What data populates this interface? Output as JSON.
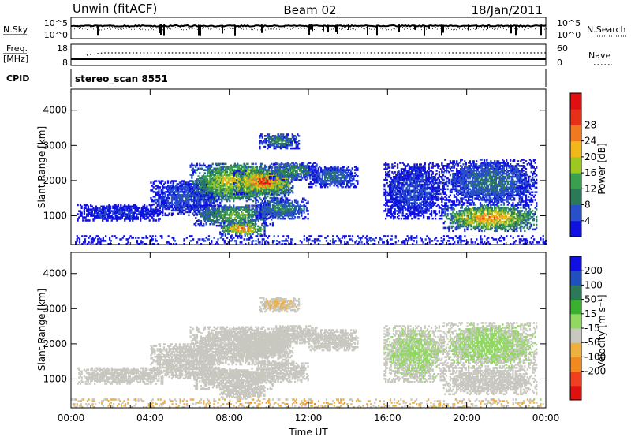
{
  "header": {
    "station": "Unwin (fitACF)",
    "beam": "Beam 02",
    "date": "18/Jan/2011"
  },
  "top_panels": {
    "nsky_label": "N.Sky",
    "nsky_ticks_left": [
      "10^5",
      "10^0"
    ],
    "nsky_ticks_right": [
      "10^5",
      "10^0"
    ],
    "nsearch_label": "N.Search",
    "freq_label": "Freq.",
    "freq_unit": "[MHz]",
    "freq_ticks": [
      "18",
      "8"
    ],
    "nave_label": "Nave",
    "nave_ticks": [
      "60",
      "0"
    ],
    "cpid_label": "CPID",
    "cpid_value": "stereo_scan 8551"
  },
  "colors": {
    "power": [
      "#1010e0",
      "#2850c8",
      "#2a7a5a",
      "#3aa050",
      "#9cc820",
      "#f0b818",
      "#f07820",
      "#e83018",
      "#e01010"
    ],
    "velocity": [
      "#e01010",
      "#f04020",
      "#f08a20",
      "#f0b040",
      "#c8c8c0",
      "#90d860",
      "#3ab030",
      "#2a7a5a",
      "#2050c0",
      "#1010e0"
    ]
  },
  "chart_data": [
    {
      "type": "heatmap",
      "title": "",
      "ylabel": "Slant Range [km]",
      "xlabel": "Time UT",
      "x_ticks": [
        "00:00",
        "04:00",
        "08:00",
        "12:00",
        "16:00",
        "20:00",
        "00:00"
      ],
      "y_ticks": [
        "1000",
        "2000",
        "3000",
        "4000"
      ],
      "ylim": [
        180,
        4600
      ],
      "xlim_hours": [
        0,
        24
      ],
      "colorbar": {
        "label": "Power [dB]",
        "ticks": [
          "4",
          "8",
          "12",
          "16",
          "20",
          "24",
          "28"
        ],
        "range": [
          0,
          30
        ]
      },
      "regions": [
        {
          "t": [
            0.3,
            4.6
          ],
          "r": [
            850,
            1300
          ],
          "core": 4,
          "edge": 2
        },
        {
          "t": [
            4.0,
            7.5
          ],
          "r": [
            1000,
            2000
          ],
          "core": 6,
          "edge": 2
        },
        {
          "t": [
            6.0,
            11.0
          ],
          "r": [
            1400,
            2500
          ],
          "core": 20,
          "edge": 4
        },
        {
          "t": [
            8.2,
            11.2
          ],
          "r": [
            1600,
            2300
          ],
          "core": 26,
          "edge": 6
        },
        {
          "t": [
            10.0,
            12.4
          ],
          "r": [
            2000,
            2500
          ],
          "core": 12,
          "edge": 3
        },
        {
          "t": [
            12.0,
            14.5
          ],
          "r": [
            1800,
            2400
          ],
          "core": 8,
          "edge": 2
        },
        {
          "t": [
            6.2,
            10.2
          ],
          "r": [
            700,
            1300
          ],
          "core": 14,
          "edge": 3
        },
        {
          "t": [
            7.5,
            9.8
          ],
          "r": [
            420,
            800
          ],
          "core": 24,
          "edge": 5
        },
        {
          "t": [
            9.3,
            12.0
          ],
          "r": [
            900,
            1500
          ],
          "core": 10,
          "edge": 3
        },
        {
          "t": [
            9.5,
            11.5
          ],
          "r": [
            2900,
            3300
          ],
          "core": 10,
          "edge": 3
        },
        {
          "t": [
            15.8,
            18.8
          ],
          "r": [
            900,
            2500
          ],
          "core": 5,
          "edge": 2
        },
        {
          "t": [
            18.8,
            23.5
          ],
          "r": [
            550,
            1300
          ],
          "core": 22,
          "edge": 5
        },
        {
          "t": [
            18.8,
            23.5
          ],
          "r": [
            1300,
            2600
          ],
          "core": 8,
          "edge": 2
        },
        {
          "t": [
            0.0,
            24.0
          ],
          "r": [
            180,
            420
          ],
          "core": 4,
          "edge": 2
        }
      ]
    },
    {
      "type": "heatmap",
      "title": "",
      "ylabel": "Slant Range [km]",
      "xlabel": "Time UT",
      "x_ticks": [
        "00:00",
        "04:00",
        "08:00",
        "12:00",
        "16:00",
        "20:00",
        "00:00"
      ],
      "y_ticks": [
        "1000",
        "2000",
        "3000",
        "4000"
      ],
      "ylim": [
        180,
        4600
      ],
      "xlim_hours": [
        0,
        24
      ],
      "colorbar": {
        "label": "Velocity [m s⁻¹]",
        "ticks": [
          "200",
          "100",
          "50",
          "15",
          "-15",
          "-50",
          "-100",
          "-200"
        ],
        "range": [
          -250,
          250
        ]
      },
      "regions": [
        {
          "t": [
            0.3,
            4.6
          ],
          "r": [
            850,
            1300
          ],
          "core": 0,
          "edge": 10
        },
        {
          "t": [
            4.0,
            7.5
          ],
          "r": [
            1000,
            2000
          ],
          "core": 0,
          "edge": 10
        },
        {
          "t": [
            6.0,
            11.0
          ],
          "r": [
            1400,
            2500
          ],
          "core": 0,
          "edge": 8
        },
        {
          "t": [
            8.2,
            11.2
          ],
          "r": [
            1600,
            2300
          ],
          "core": 0,
          "edge": 8
        },
        {
          "t": [
            10.0,
            12.4
          ],
          "r": [
            2000,
            2500
          ],
          "core": 0,
          "edge": 8
        },
        {
          "t": [
            12.0,
            14.5
          ],
          "r": [
            1800,
            2400
          ],
          "core": 0,
          "edge": 8
        },
        {
          "t": [
            6.2,
            10.2
          ],
          "r": [
            700,
            1300
          ],
          "core": 0,
          "edge": 8
        },
        {
          "t": [
            7.5,
            9.8
          ],
          "r": [
            420,
            800
          ],
          "core": 0,
          "edge": 8
        },
        {
          "t": [
            9.3,
            12.0
          ],
          "r": [
            900,
            1500
          ],
          "core": 0,
          "edge": 8
        },
        {
          "t": [
            9.5,
            11.5
          ],
          "r": [
            2900,
            3300
          ],
          "core": -20,
          "edge": 8
        },
        {
          "t": [
            15.8,
            18.8
          ],
          "r": [
            900,
            2500
          ],
          "core": 25,
          "edge": 10
        },
        {
          "t": [
            18.8,
            23.5
          ],
          "r": [
            550,
            1300
          ],
          "core": 0,
          "edge": 10
        },
        {
          "t": [
            18.8,
            23.5
          ],
          "r": [
            1300,
            2600
          ],
          "core": 30,
          "edge": 12
        },
        {
          "t": [
            0.0,
            24.0
          ],
          "r": [
            180,
            420
          ],
          "core": -40,
          "edge": 25
        }
      ]
    }
  ]
}
